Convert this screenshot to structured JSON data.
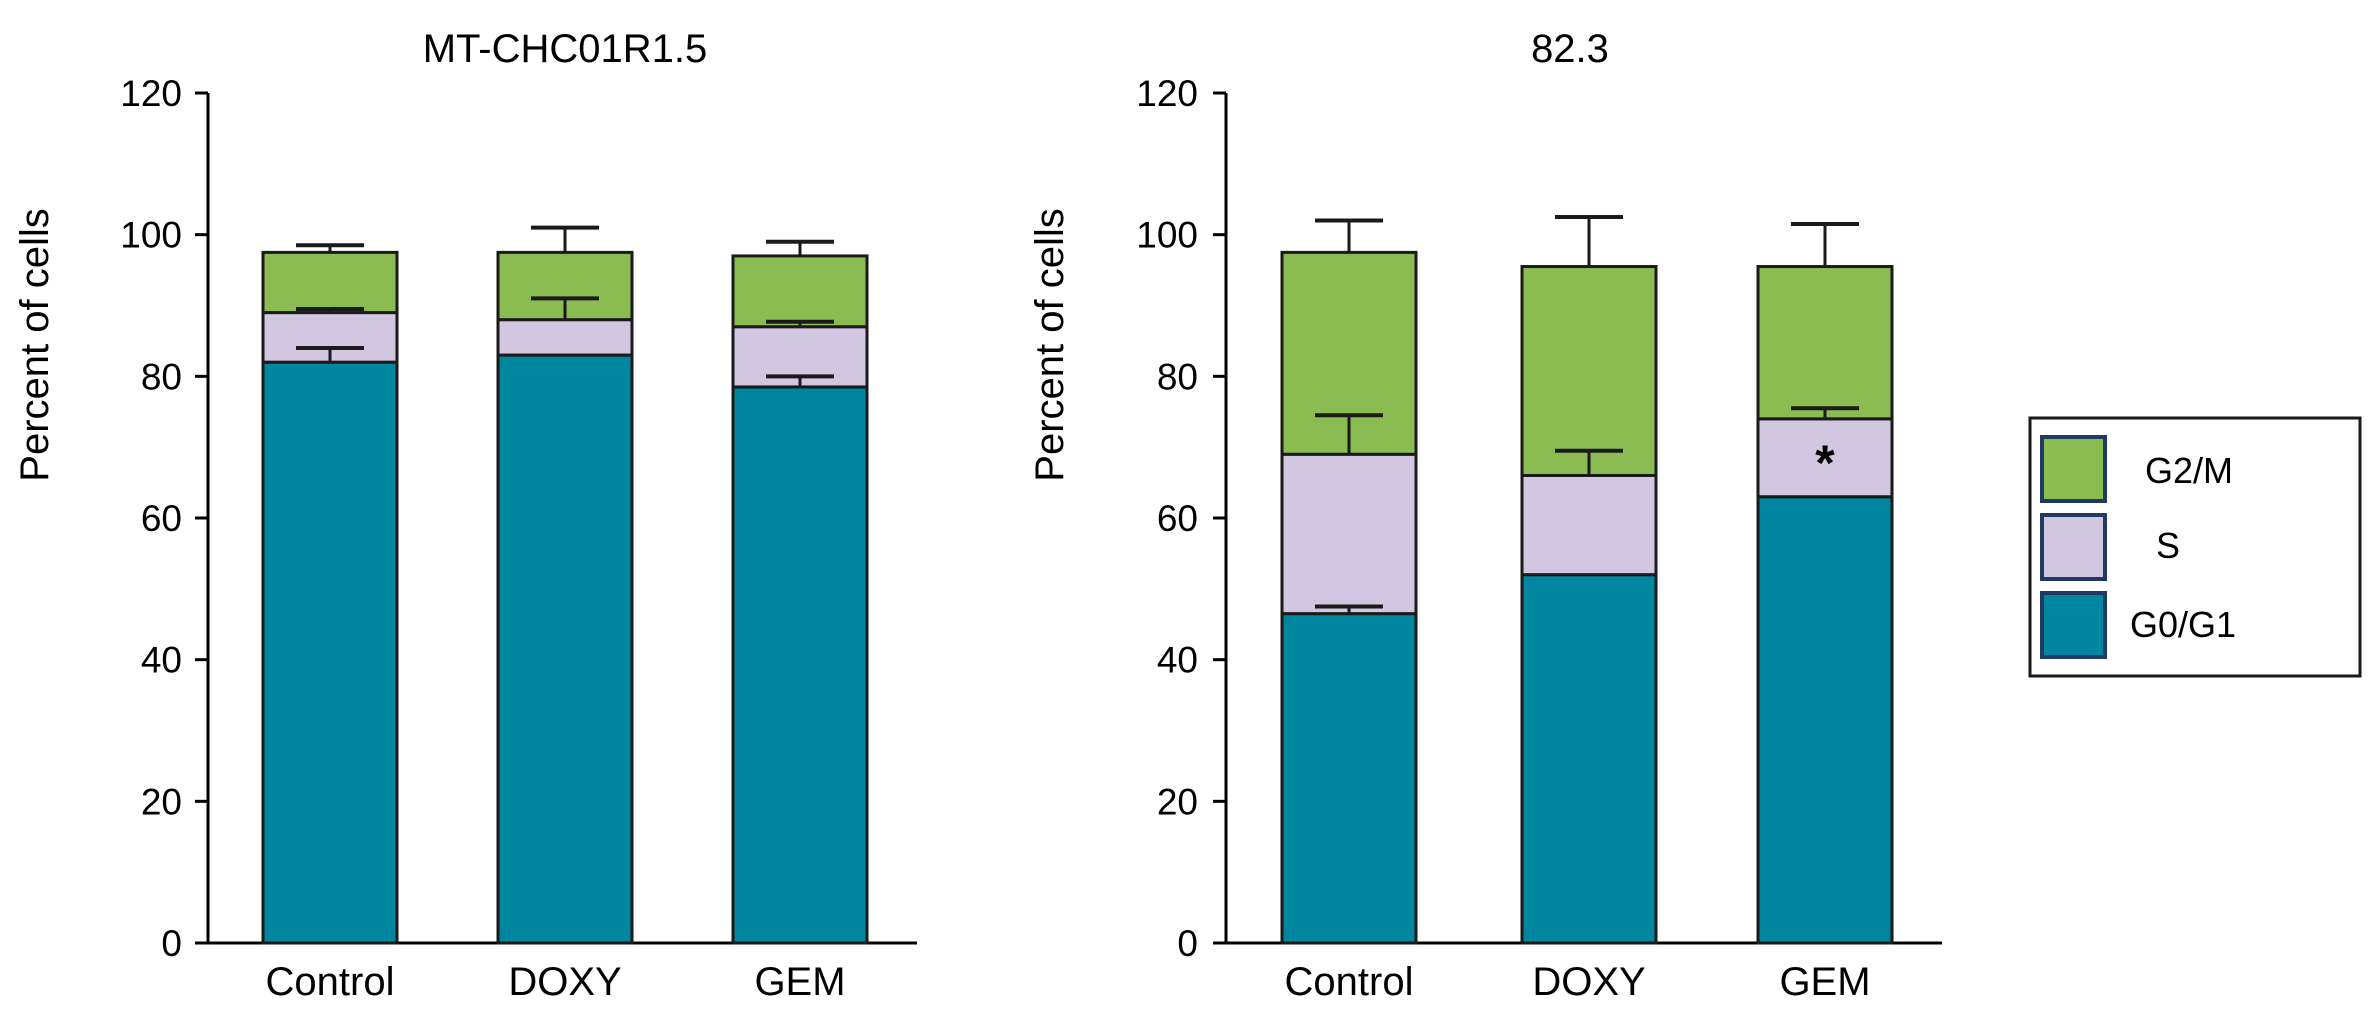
{
  "colors": {
    "g0g1": "#00869E",
    "s": "#D3C6E1",
    "g2m": "#8BBC52",
    "outline": "#1A1A1A",
    "legend_outline": "#1F3B63"
  },
  "legend": {
    "items": [
      {
        "key": "g2m",
        "label": "G2/M"
      },
      {
        "key": "s",
        "label": "S"
      },
      {
        "key": "g0g1",
        "label": "G0/G1"
      }
    ]
  },
  "chart_data": [
    {
      "type": "bar",
      "stacked": true,
      "title": "MT-CHC01R1.5",
      "xlabel": "",
      "ylabel": "Percent of cells",
      "ylim": [
        0,
        120
      ],
      "yticks": [
        0,
        20,
        40,
        60,
        80,
        100,
        120
      ],
      "categories": [
        "Control",
        "DOXY",
        "GEM"
      ],
      "series": [
        {
          "name": "G0/G1",
          "key": "g0g1",
          "values": [
            82,
            83,
            78.5
          ],
          "errors": [
            2,
            0,
            1.5
          ]
        },
        {
          "name": "S",
          "key": "s",
          "values": [
            7,
            5,
            8.5
          ],
          "errors": [
            0.5,
            3,
            0.7
          ]
        },
        {
          "name": "G2/M",
          "key": "g2m",
          "values": [
            8.5,
            9.5,
            10
          ],
          "errors": [
            1,
            3.5,
            2
          ]
        }
      ],
      "annotations": []
    },
    {
      "type": "bar",
      "stacked": true,
      "title": "82.3",
      "xlabel": "",
      "ylabel": "Percent of cells",
      "ylim": [
        0,
        120
      ],
      "yticks": [
        0,
        20,
        40,
        60,
        80,
        100,
        120
      ],
      "categories": [
        "Control",
        "DOXY",
        "GEM"
      ],
      "series": [
        {
          "name": "G0/G1",
          "key": "g0g1",
          "values": [
            46.5,
            52,
            63
          ],
          "errors": [
            1,
            0,
            0
          ]
        },
        {
          "name": "S",
          "key": "s",
          "values": [
            22.5,
            14,
            11
          ],
          "errors": [
            5.5,
            3.5,
            1.5
          ]
        },
        {
          "name": "G2/M",
          "key": "g2m",
          "values": [
            28.5,
            29.5,
            21.5
          ],
          "errors": [
            4.5,
            7,
            6
          ]
        }
      ],
      "annotations": [
        {
          "category": "GEM",
          "series": "S",
          "text": "*"
        }
      ]
    }
  ]
}
